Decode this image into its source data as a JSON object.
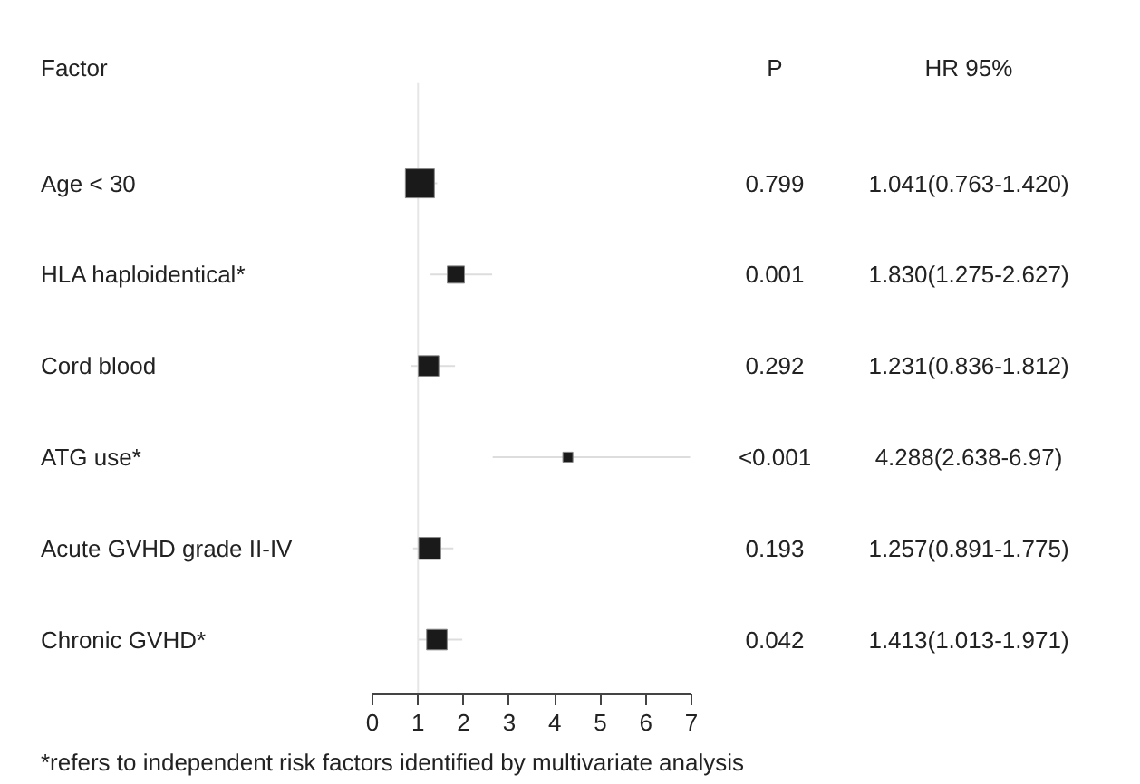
{
  "chart_data": {
    "type": "bubble",
    "orientation": "horizontal",
    "ylabel": "Factor",
    "categories": [
      "Age < 30",
      "HLA haploidentical*",
      "Cord blood",
      "ATG use*",
      "Acute GVHD grade II-IV",
      "Chronic GVHD*"
    ],
    "values": [
      1.041,
      1.83,
      1.231,
      4.288,
      1.257,
      1.413
    ],
    "errors": [
      [
        0.763,
        1.42
      ],
      [
        1.275,
        2.627
      ],
      [
        0.836,
        1.812
      ],
      [
        2.638,
        6.97
      ],
      [
        0.891,
        1.775
      ],
      [
        1.013,
        1.971
      ]
    ],
    "sizes": [
      1,
      0.35,
      0.5,
      0.12,
      0.58,
      0.5
    ],
    "color": "#1a1a1a",
    "marker": "square",
    "value_labels": [
      "1.041(0.763-1.420)",
      "1.830(1.275-2.627)",
      "1.231(0.836-1.812)",
      "4.288(2.638-6.97)",
      "1.257(0.891-1.775)",
      "1.413(1.013-1.971)"
    ],
    "xlim": [
      0,
      7
    ],
    "xticks": [
      0,
      1,
      2,
      3,
      4,
      5,
      6,
      7
    ],
    "ref_lines": [
      {
        "axis": "x",
        "value": 1,
        "color": "#e6e6e6"
      }
    ],
    "grid": false,
    "annotations": [
      "P",
      "HR 95%",
      "*refers to independent risk factors identified by multivariate analysis",
      "0.799",
      "0.001",
      "0.292",
      "<0.001",
      "0.193",
      "0.042"
    ]
  }
}
